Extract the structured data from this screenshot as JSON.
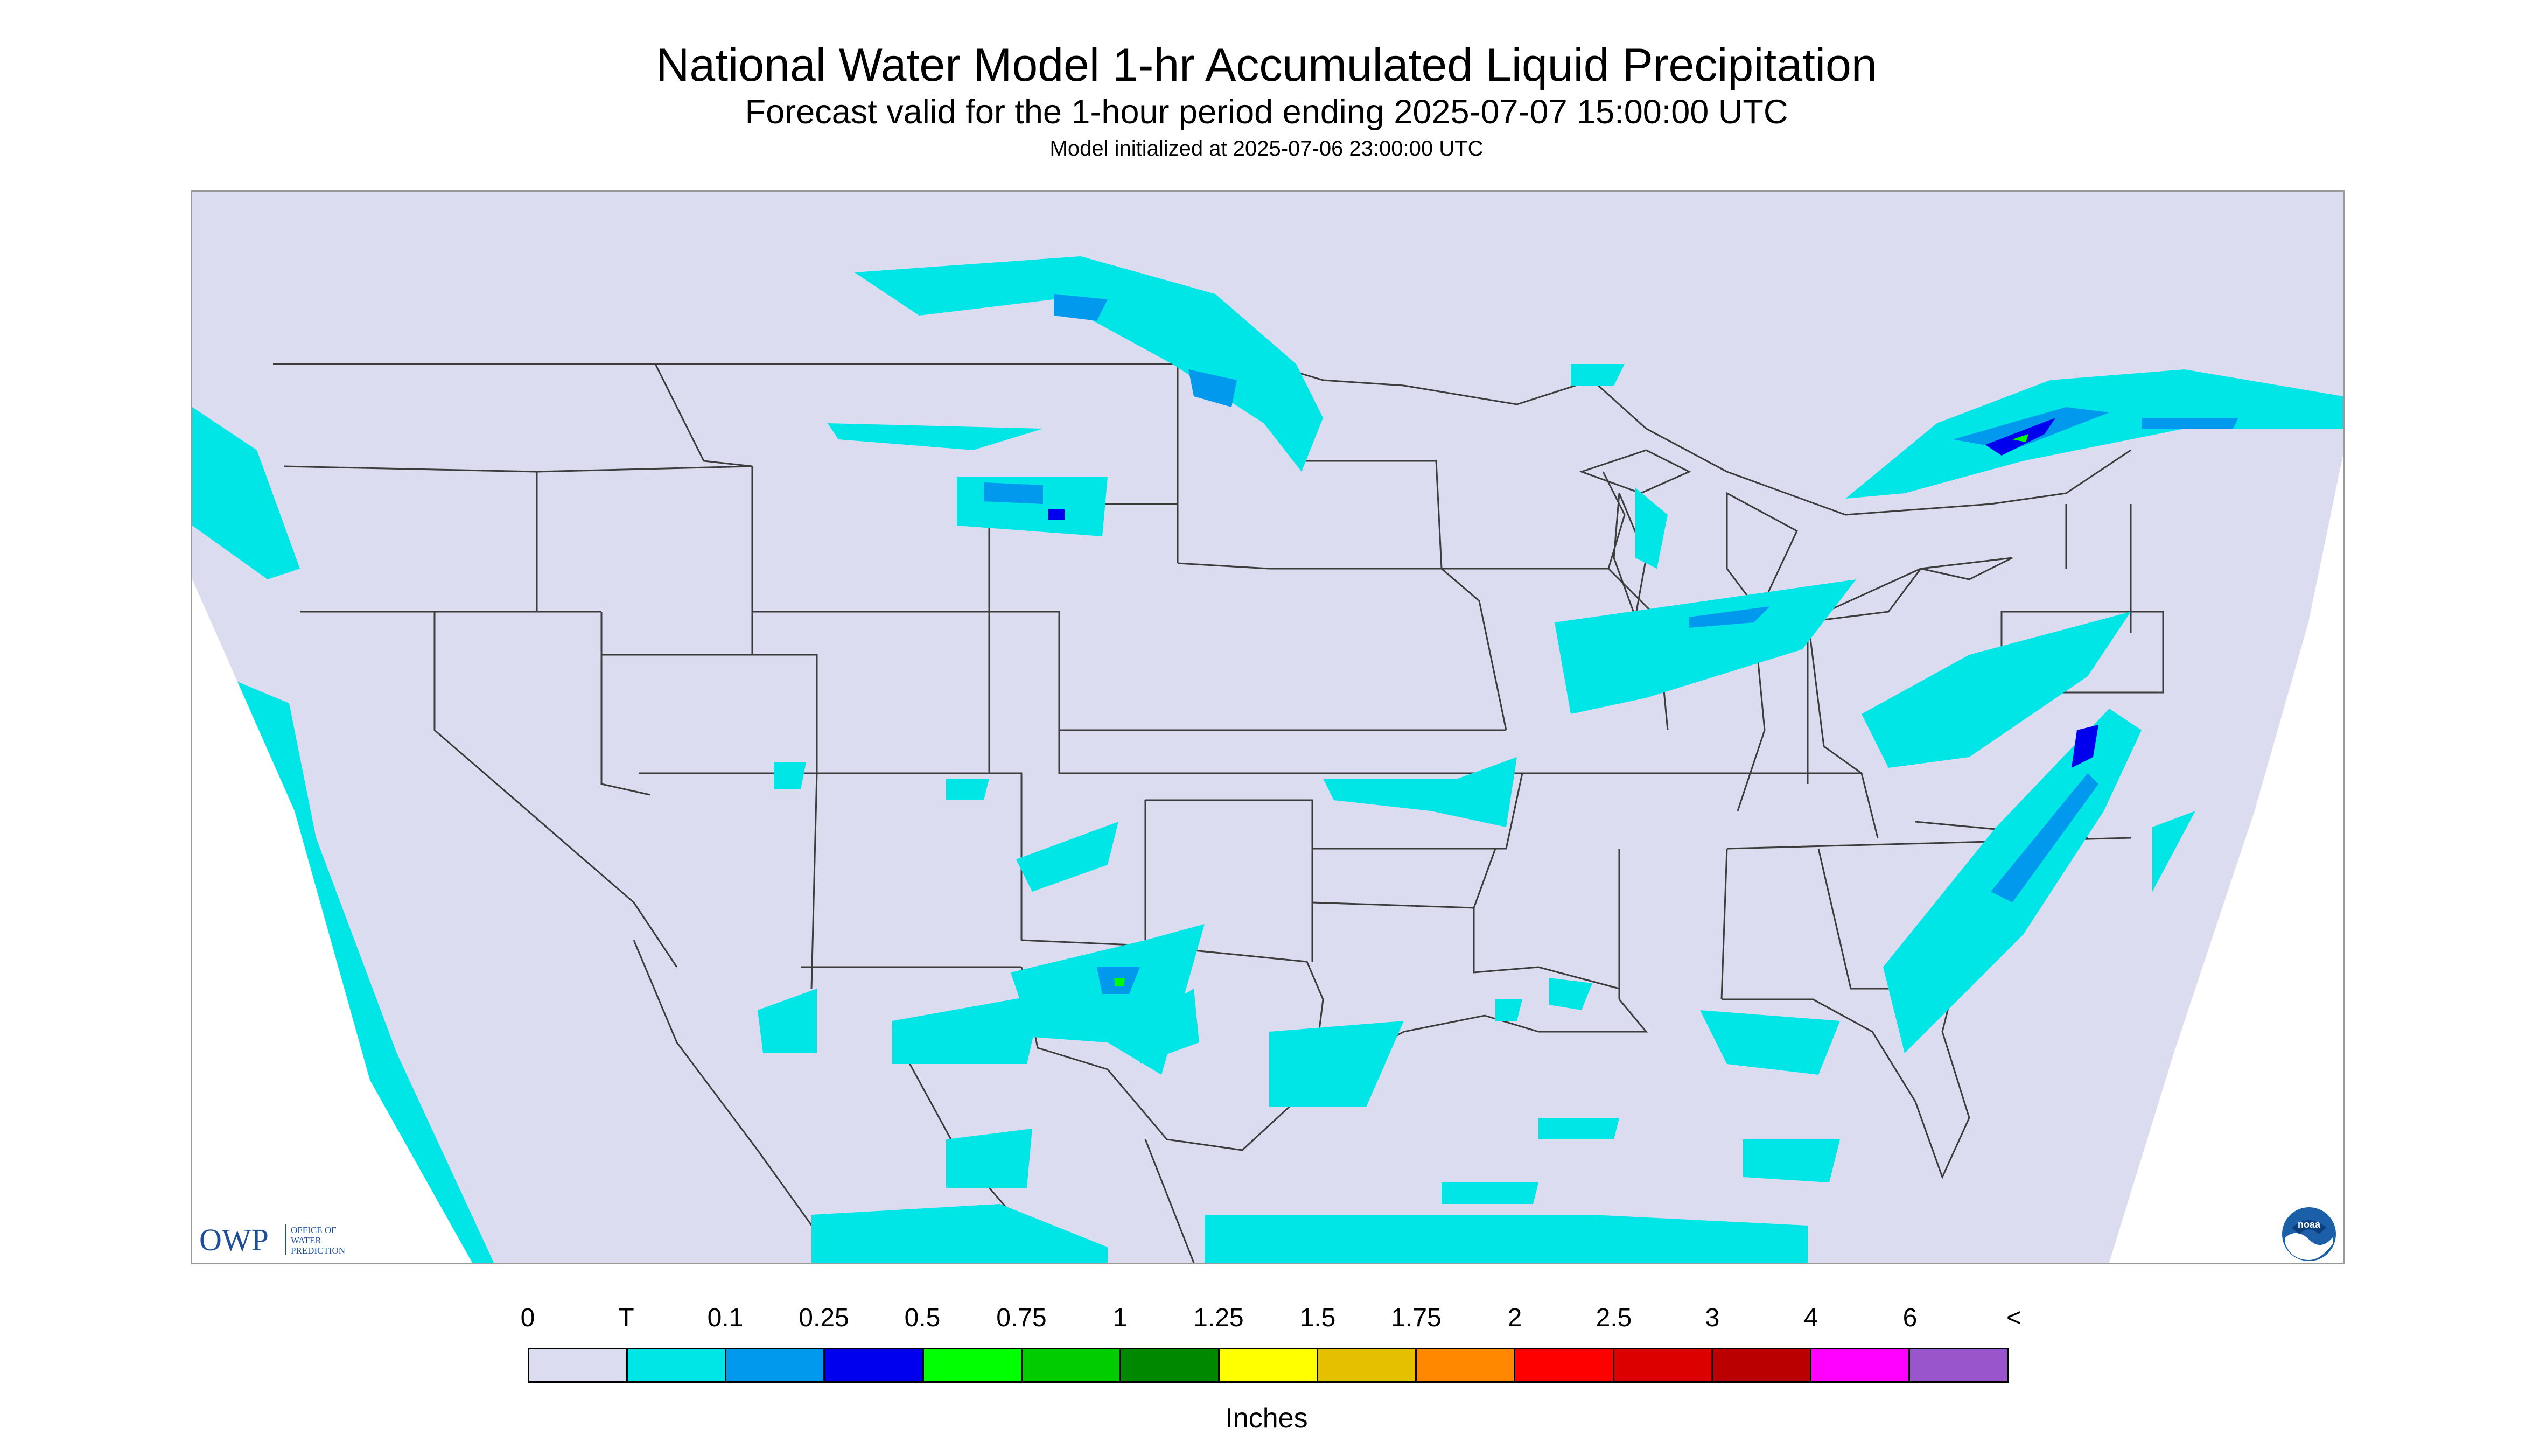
{
  "header": {
    "title": "National Water Model 1-hr Accumulated Liquid Precipitation",
    "subtitle": "Forecast valid for the 1-hour period ending 2025-07-07 15:00:00 UTC",
    "init_line": "Model initialized at 2025-07-06 23:00:00 UTC"
  },
  "map": {
    "region": "CONUS",
    "background_color": "#dcdcf0",
    "outside_domain_color": "#ffffff",
    "boundary_color": "#3c3c3c"
  },
  "logos": {
    "owp": {
      "mark": "OWP",
      "lines": [
        "OFFICE OF",
        "WATER",
        "PREDICTION"
      ]
    },
    "noaa": {
      "mark": "noaa"
    }
  },
  "legend": {
    "ticks": [
      "0",
      "T",
      "0.1",
      "0.25",
      "0.5",
      "0.75",
      "1",
      "1.25",
      "1.5",
      "1.75",
      "2",
      "2.5",
      "3",
      "4",
      "6",
      "<"
    ],
    "colors": [
      "#dcdcf0",
      "#00e5e5",
      "#0099ee",
      "#0000ee",
      "#00ff00",
      "#00cc00",
      "#008800",
      "#ffff00",
      "#e5c000",
      "#ff8800",
      "#ff0000",
      "#dd0000",
      "#bb0000",
      "#ff00ff",
      "#9955cc"
    ],
    "units": "Inches"
  }
}
